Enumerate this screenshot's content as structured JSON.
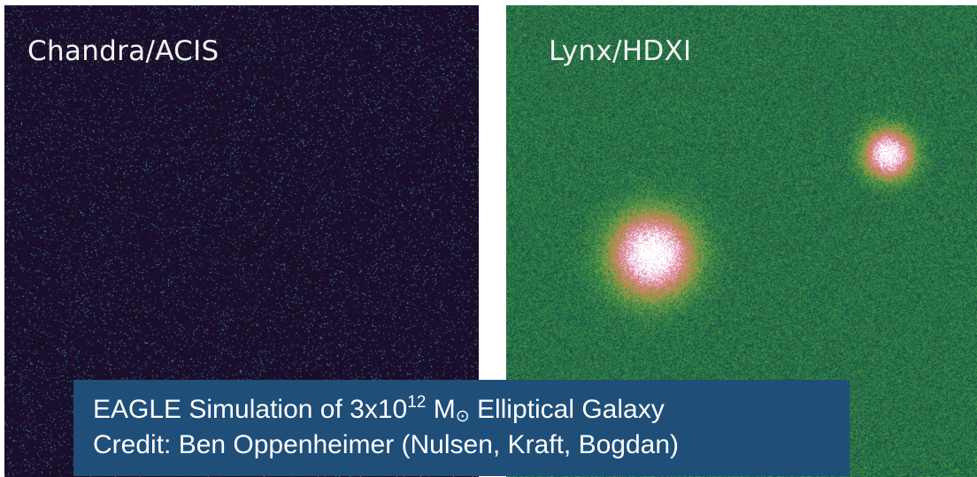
{
  "panels": {
    "left": {
      "label": "Chandra/ACIS"
    },
    "right": {
      "label": "Lynx/HDXI"
    }
  },
  "caption": {
    "line1_prefix": "EAGLE Simulation of 3x10",
    "line1_exponent": "12",
    "line1_mass_symbol": "M",
    "line1_subscript": "⊙",
    "line1_suffix": " Elliptical Galaxy",
    "line2": "Credit: Ben Oppenheimer (Nulsen, Kraft, Bogdan)"
  },
  "colors": {
    "left_background": "#1a0d2a",
    "left_speckle": "#4fb0a0",
    "right_background": "#1a4a3a",
    "right_noise": "#2f8a4a",
    "source_glow": "#e0c070",
    "source_core": "#ffffff",
    "caption_background": "#1f4e79",
    "caption_text": "#ffffff"
  }
}
